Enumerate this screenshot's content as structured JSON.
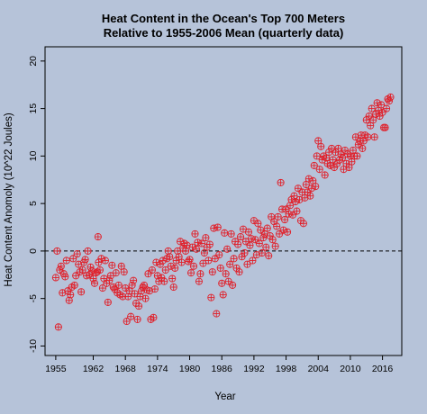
{
  "chart_data": {
    "type": "scatter",
    "title": "Heat Content in the Ocean's Top 700 Meters",
    "subtitle": "Relative to 1955-2006 Mean (quarterly data)",
    "xlabel": "Year",
    "ylabel": "Heat Content Anomoly (10^22 Joules)",
    "xlim": [
      1953.0,
      2019.6
    ],
    "ylim": [
      -11.0,
      21.5
    ],
    "x_ticks": [
      1955,
      1962,
      1968,
      1974,
      1980,
      1986,
      1992,
      1998,
      2004,
      2010,
      2016
    ],
    "x_tick_labels": [
      "1955",
      "1962",
      "1968",
      "1974",
      "1980",
      "1986",
      "1992",
      "1998",
      "2004",
      "2010",
      "2016"
    ],
    "y_ticks": [
      -10,
      -5,
      0,
      5,
      10,
      15,
      20
    ],
    "y_tick_labels": [
      "-10",
      "-5",
      "0",
      "5",
      "10",
      "15",
      "20"
    ],
    "reference_line": {
      "y": 0,
      "style": "dashed"
    },
    "marker": {
      "shape": "circled-plus",
      "color": "#e0202a"
    },
    "series": [
      {
        "points": [
          [
            1955.0,
            -2.8
          ],
          [
            1955.25,
            0.0
          ],
          [
            1955.5,
            -8.0
          ],
          [
            1955.75,
            -2.0
          ],
          [
            1956.0,
            -1.6
          ],
          [
            1956.25,
            -4.4
          ],
          [
            1956.5,
            -2.4
          ],
          [
            1956.75,
            -2.7
          ],
          [
            1957.0,
            -1.0
          ],
          [
            1957.25,
            -4.2
          ],
          [
            1957.5,
            -5.2
          ],
          [
            1957.75,
            -4.6
          ],
          [
            1958.0,
            -3.8
          ],
          [
            1958.25,
            -0.8
          ],
          [
            1958.5,
            -3.6
          ],
          [
            1958.75,
            -2.6
          ],
          [
            1959.0,
            -0.3
          ],
          [
            1959.25,
            -1.4
          ],
          [
            1959.5,
            -2.2
          ],
          [
            1959.75,
            -4.3
          ],
          [
            1960.0,
            -2.0
          ],
          [
            1960.25,
            -1.2
          ],
          [
            1960.5,
            -0.9
          ],
          [
            1960.75,
            -2.6
          ],
          [
            1961.0,
            0.0
          ],
          [
            1961.25,
            -2.5
          ],
          [
            1961.5,
            -1.7
          ],
          [
            1961.75,
            -2.1
          ],
          [
            1962.0,
            -2.9
          ],
          [
            1962.25,
            -3.4
          ],
          [
            1962.5,
            -2.3
          ],
          [
            1962.75,
            -2.2
          ],
          [
            1962.9,
            1.5
          ],
          [
            1963.0,
            -1.2
          ],
          [
            1963.25,
            -2.0
          ],
          [
            1963.5,
            -0.8
          ],
          [
            1963.75,
            -3.9
          ],
          [
            1964.0,
            -2.9
          ],
          [
            1964.25,
            -1.0
          ],
          [
            1964.5,
            -3.4
          ],
          [
            1964.75,
            -5.4
          ],
          [
            1965.0,
            -3.1
          ],
          [
            1965.25,
            -2.6
          ],
          [
            1965.5,
            -1.5
          ],
          [
            1965.75,
            -3.8
          ],
          [
            1966.0,
            -4.0
          ],
          [
            1966.25,
            -2.3
          ],
          [
            1966.5,
            -4.4
          ],
          [
            1966.75,
            -3.6
          ],
          [
            1967.0,
            -4.6
          ],
          [
            1967.25,
            -1.6
          ],
          [
            1967.5,
            -4.8
          ],
          [
            1967.75,
            -2.2
          ],
          [
            1968.0,
            -3.9
          ],
          [
            1968.25,
            -7.4
          ],
          [
            1968.5,
            -4.8
          ],
          [
            1968.75,
            -4.2
          ],
          [
            1969.0,
            -6.9
          ],
          [
            1969.25,
            -3.6
          ],
          [
            1969.5,
            -3.1
          ],
          [
            1969.75,
            -4.5
          ],
          [
            1970.0,
            -5.5
          ],
          [
            1970.25,
            -7.2
          ],
          [
            1970.5,
            -5.8
          ],
          [
            1970.75,
            -4.8
          ],
          [
            1971.0,
            -4.2
          ],
          [
            1971.25,
            -3.8
          ],
          [
            1971.5,
            -3.6
          ],
          [
            1971.75,
            -5.0
          ],
          [
            1972.0,
            -4.1
          ],
          [
            1972.25,
            -2.4
          ],
          [
            1972.5,
            -4.2
          ],
          [
            1972.75,
            -7.2
          ],
          [
            1973.0,
            -2.0
          ],
          [
            1973.25,
            -7.0
          ],
          [
            1973.5,
            -4.0
          ],
          [
            1973.75,
            -1.2
          ],
          [
            1974.0,
            -2.6
          ],
          [
            1974.25,
            -3.2
          ],
          [
            1974.5,
            -1.4
          ],
          [
            1974.75,
            -2.8
          ],
          [
            1975.0,
            -1.0
          ],
          [
            1975.25,
            -3.2
          ],
          [
            1975.5,
            -2.0
          ],
          [
            1975.75,
            -0.8
          ],
          [
            1976.0,
            0.0
          ],
          [
            1976.25,
            -0.6
          ],
          [
            1976.5,
            -1.6
          ],
          [
            1976.75,
            -2.9
          ],
          [
            1977.0,
            -3.8
          ],
          [
            1977.25,
            -1.8
          ],
          [
            1977.5,
            -1.0
          ],
          [
            1977.75,
            0.0
          ],
          [
            1978.0,
            -0.6
          ],
          [
            1978.25,
            1.0
          ],
          [
            1978.5,
            -1.2
          ],
          [
            1978.75,
            0.3
          ],
          [
            1979.0,
            0.8
          ],
          [
            1979.25,
            0.0
          ],
          [
            1979.5,
            0.6
          ],
          [
            1979.75,
            -1.1
          ],
          [
            1980.0,
            -0.9
          ],
          [
            1980.25,
            -2.3
          ],
          [
            1980.5,
            0.4
          ],
          [
            1980.75,
            -1.6
          ],
          [
            1981.0,
            1.8
          ],
          [
            1981.25,
            0.2
          ],
          [
            1981.5,
            0.9
          ],
          [
            1981.75,
            -3.2
          ],
          [
            1982.0,
            -2.4
          ],
          [
            1982.25,
            0.8
          ],
          [
            1982.5,
            -1.3
          ],
          [
            1982.75,
            -0.2
          ],
          [
            1983.0,
            1.4
          ],
          [
            1983.25,
            0.4
          ],
          [
            1983.5,
            -1.0
          ],
          [
            1983.75,
            0.7
          ],
          [
            1984.0,
            -4.9
          ],
          [
            1984.25,
            -2.2
          ],
          [
            1984.5,
            2.4
          ],
          [
            1984.75,
            -0.8
          ],
          [
            1985.0,
            -6.6
          ],
          [
            1985.25,
            2.5
          ],
          [
            1985.5,
            -0.4
          ],
          [
            1985.75,
            -1.8
          ],
          [
            1986.0,
            -3.4
          ],
          [
            1986.25,
            -4.6
          ],
          [
            1986.5,
            1.9
          ],
          [
            1986.75,
            -2.4
          ],
          [
            1987.0,
            0.2
          ],
          [
            1987.25,
            -3.2
          ],
          [
            1987.5,
            -1.4
          ],
          [
            1987.75,
            1.8
          ],
          [
            1988.0,
            -3.6
          ],
          [
            1988.25,
            -0.8
          ],
          [
            1988.5,
            1.0
          ],
          [
            1988.75,
            -1.8
          ],
          [
            1989.0,
            0.7
          ],
          [
            1989.25,
            -2.2
          ],
          [
            1989.5,
            1.5
          ],
          [
            1989.75,
            -0.6
          ],
          [
            1990.0,
            2.3
          ],
          [
            1990.25,
            -0.2
          ],
          [
            1990.5,
            1.0
          ],
          [
            1990.75,
            -1.4
          ],
          [
            1991.0,
            2.0
          ],
          [
            1991.25,
            0.6
          ],
          [
            1991.5,
            1.3
          ],
          [
            1991.75,
            -1.0
          ],
          [
            1992.0,
            3.2
          ],
          [
            1992.25,
            1.2
          ],
          [
            1992.5,
            -0.4
          ],
          [
            1992.75,
            2.9
          ],
          [
            1993.0,
            0.8
          ],
          [
            1993.25,
            2.2
          ],
          [
            1993.5,
            -0.2
          ],
          [
            1993.75,
            1.4
          ],
          [
            1994.0,
            1.8
          ],
          [
            1994.25,
            0.4
          ],
          [
            1994.5,
            2.4
          ],
          [
            1994.75,
            -0.5
          ],
          [
            1995.0,
            1.6
          ],
          [
            1995.25,
            3.6
          ],
          [
            1995.5,
            1.2
          ],
          [
            1995.75,
            3.1
          ],
          [
            1996.0,
            0.5
          ],
          [
            1996.25,
            2.6
          ],
          [
            1996.5,
            3.6
          ],
          [
            1996.75,
            1.8
          ],
          [
            1997.0,
            7.2
          ],
          [
            1997.25,
            4.4
          ],
          [
            1997.5,
            2.2
          ],
          [
            1997.75,
            3.3
          ],
          [
            1998.0,
            4.4
          ],
          [
            1998.25,
            2.0
          ],
          [
            1998.5,
            3.9
          ],
          [
            1998.75,
            4.8
          ],
          [
            1999.0,
            5.4
          ],
          [
            1999.25,
            3.8
          ],
          [
            1999.5,
            5.8
          ],
          [
            1999.75,
            5.2
          ],
          [
            2000.0,
            4.2
          ],
          [
            2000.25,
            6.6
          ],
          [
            2000.5,
            5.4
          ],
          [
            2000.75,
            3.2
          ],
          [
            2001.0,
            6.2
          ],
          [
            2001.25,
            2.9
          ],
          [
            2001.5,
            5.6
          ],
          [
            2001.75,
            7.0
          ],
          [
            2002.0,
            6.2
          ],
          [
            2002.25,
            7.6
          ],
          [
            2002.5,
            5.8
          ],
          [
            2002.75,
            6.6
          ],
          [
            2003.0,
            7.4
          ],
          [
            2003.25,
            9.0
          ],
          [
            2003.5,
            6.8
          ],
          [
            2003.75,
            10.0
          ],
          [
            2004.0,
            11.6
          ],
          [
            2004.25,
            8.6
          ],
          [
            2004.5,
            11.0
          ],
          [
            2004.75,
            9.6
          ],
          [
            2005.0,
            10.0
          ],
          [
            2005.25,
            8.0
          ],
          [
            2005.5,
            9.8
          ],
          [
            2005.75,
            9.2
          ],
          [
            2006.0,
            10.4
          ],
          [
            2006.25,
            9.0
          ],
          [
            2006.5,
            10.8
          ],
          [
            2006.75,
            9.6
          ],
          [
            2007.0,
            8.8
          ],
          [
            2007.25,
            10.4
          ],
          [
            2007.5,
            9.2
          ],
          [
            2007.75,
            10.8
          ],
          [
            2008.0,
            9.6
          ],
          [
            2008.25,
            10.2
          ],
          [
            2008.5,
            9.8
          ],
          [
            2008.75,
            8.6
          ],
          [
            2009.0,
            10.6
          ],
          [
            2009.25,
            9.2
          ],
          [
            2009.5,
            10.2
          ],
          [
            2009.75,
            8.8
          ],
          [
            2010.0,
            10.0
          ],
          [
            2010.25,
            9.4
          ],
          [
            2010.5,
            10.6
          ],
          [
            2010.75,
            10.0
          ],
          [
            2011.0,
            12.0
          ],
          [
            2011.25,
            10.0
          ],
          [
            2011.5,
            11.2
          ],
          [
            2011.75,
            11.6
          ],
          [
            2012.0,
            12.2
          ],
          [
            2012.25,
            10.8
          ],
          [
            2012.5,
            11.6
          ],
          [
            2012.75,
            12.2
          ],
          [
            2013.0,
            13.8
          ],
          [
            2013.25,
            12.0
          ],
          [
            2013.5,
            14.2
          ],
          [
            2013.75,
            13.2
          ],
          [
            2014.0,
            15.0
          ],
          [
            2014.25,
            13.8
          ],
          [
            2014.5,
            12.0
          ],
          [
            2014.75,
            14.4
          ],
          [
            2015.0,
            15.6
          ],
          [
            2015.25,
            14.8
          ],
          [
            2015.5,
            14.2
          ],
          [
            2015.75,
            15.4
          ],
          [
            2016.0,
            14.6
          ],
          [
            2016.25,
            13.0
          ],
          [
            2016.5,
            13.0
          ],
          [
            2016.75,
            15.0
          ],
          [
            2017.0,
            16.0
          ],
          [
            2017.25,
            15.8
          ],
          [
            2017.5,
            16.2
          ]
        ]
      }
    ]
  }
}
